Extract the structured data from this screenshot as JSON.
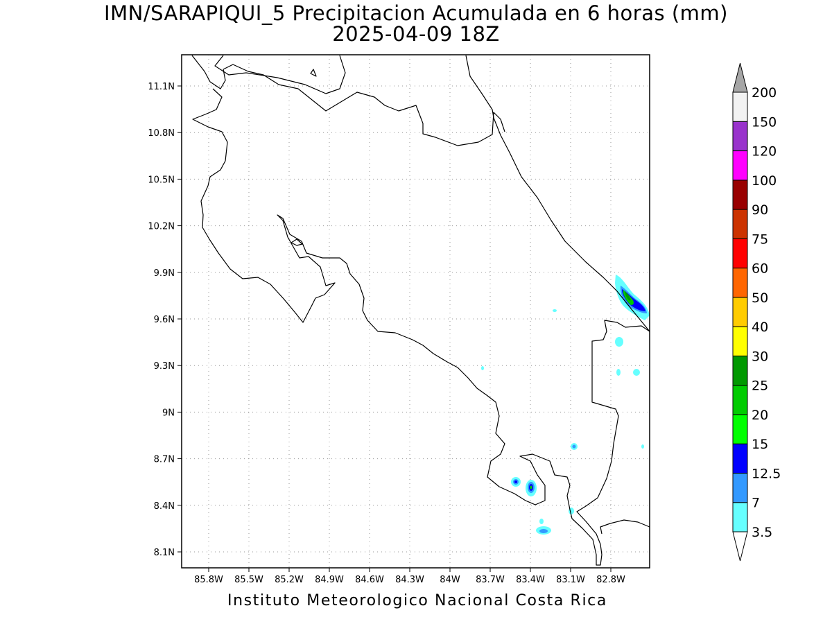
{
  "title_line1": "IMN/SARAPIQUI_5 Precipitacion Acumulada en 6 horas (mm)",
  "title_line2": "2025-04-09 18Z",
  "footer": "Instituto Meteorologico Nacional Costa Rica",
  "map": {
    "lat_ticks": [
      "11.1N",
      "10.8N",
      "10.5N",
      "10.2N",
      "9.9N",
      "9.6N",
      "9.3N",
      "9N",
      "8.7N",
      "8.4N",
      "8.1N"
    ],
    "lon_ticks": [
      "85.8W",
      "85.5W",
      "85.2W",
      "84.9W",
      "84.6W",
      "84.3W",
      "84W",
      "83.7W",
      "83.4W",
      "83.1W",
      "82.8W"
    ],
    "grid": "dotted"
  },
  "colorbar": {
    "labels": [
      "3.5",
      "7",
      "12.5",
      "15",
      "20",
      "25",
      "30",
      "40",
      "50",
      "60",
      "75",
      "90",
      "100",
      "120",
      "150",
      "200"
    ],
    "colors": [
      "#66ffff",
      "#3399ff",
      "#0000ff",
      "#00ff00",
      "#00cc00",
      "#009900",
      "#ffff00",
      "#ffcc00",
      "#ff6600",
      "#ff0000",
      "#cc3300",
      "#990000",
      "#ff00ff",
      "#9933cc",
      "#f2f2f2",
      "#a6a6a6"
    ]
  }
}
